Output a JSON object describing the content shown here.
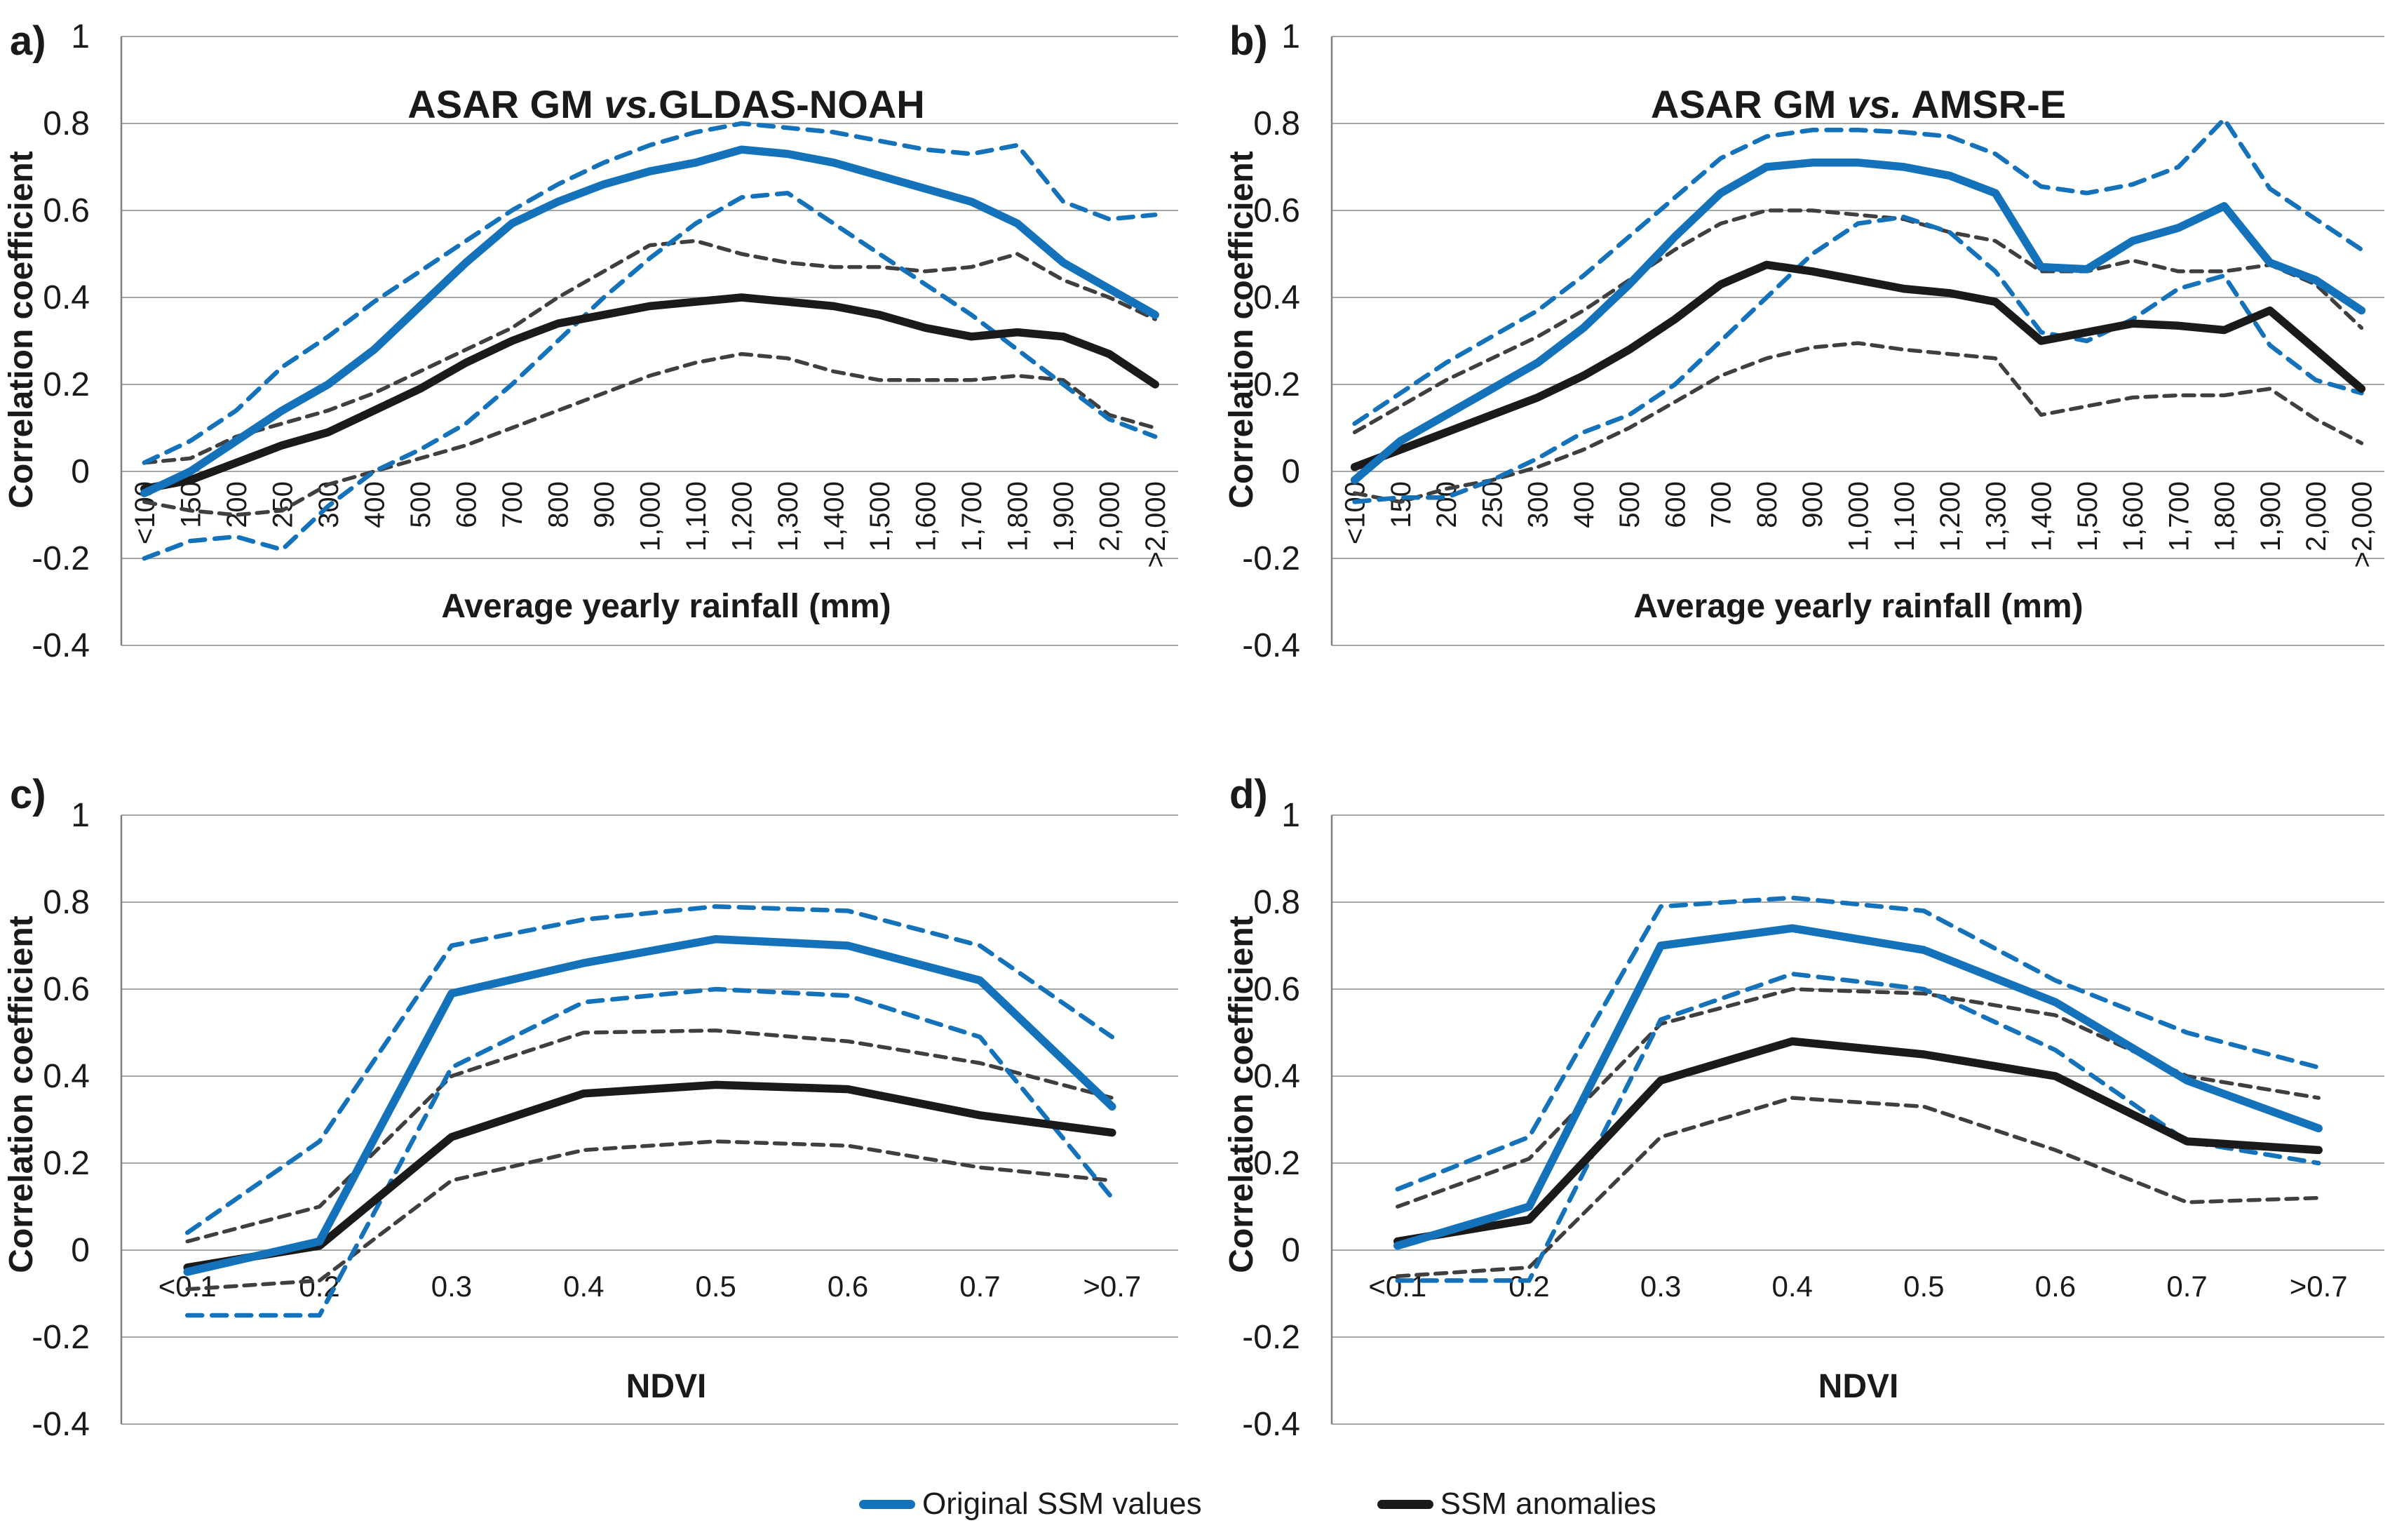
{
  "page": {
    "background": "#ffffff"
  },
  "colors": {
    "blue": "#1472BB",
    "black": "#1a1a1a",
    "black_dashed": "#3f3f3f",
    "gridline": "#a6a6a6",
    "axis_line": "#808080"
  },
  "legend": {
    "items": [
      {
        "label": "Original SSM values",
        "color": "#1472BB"
      },
      {
        "label": "SSM anomalies",
        "color": "#1a1a1a"
      }
    ]
  },
  "y_axis": {
    "label": "Correlation coefficient",
    "tick_labels": [
      "1",
      "0.8",
      "0.6",
      "0.4",
      "0.2",
      "0",
      "-0.2",
      "-0.4"
    ],
    "tick_values": [
      1,
      0.8,
      0.6,
      0.4,
      0.2,
      0,
      -0.2,
      -0.4
    ],
    "min": -0.4,
    "max": 1
  },
  "chart_data": [
    {
      "id": "a",
      "type": "line",
      "panel_letter": "a)",
      "title": "ASAR GM vs.GLDAS-NOAH",
      "title_parts": [
        "ASAR GM ",
        "vs.",
        "GLDAS-NOAH"
      ],
      "xlabel": "Average yearly rainfall (mm)",
      "ylabel": "Correlation coefficient",
      "ylim": [
        -0.4,
        1
      ],
      "x_labels_rotated": true,
      "categories": [
        "<100",
        "150",
        "200",
        "250",
        "300",
        "400",
        "500",
        "600",
        "700",
        "800",
        "900",
        "1,000",
        "1,100",
        "1,200",
        "1,300",
        "1,400",
        "1,500",
        "1,600",
        "1,700",
        "1,800",
        "1,900",
        "2,000",
        ">2,000"
      ],
      "series": [
        {
          "name": "SSM anomalies upper bound",
          "color": "black",
          "style": "dashed",
          "values": [
            0.02,
            0.03,
            0.08,
            0.11,
            0.14,
            0.18,
            0.23,
            0.28,
            0.33,
            0.4,
            0.46,
            0.52,
            0.53,
            0.5,
            0.48,
            0.47,
            0.47,
            0.46,
            0.47,
            0.5,
            0.44,
            0.4,
            0.35
          ]
        },
        {
          "name": "SSM anomalies lower bound",
          "color": "black",
          "style": "dashed",
          "values": [
            -0.07,
            -0.09,
            -0.1,
            -0.09,
            -0.03,
            0.0,
            0.03,
            0.06,
            0.1,
            0.14,
            0.18,
            0.22,
            0.25,
            0.27,
            0.26,
            0.23,
            0.21,
            0.21,
            0.21,
            0.22,
            0.21,
            0.13,
            0.1
          ]
        },
        {
          "name": "Original SSM values upper bound",
          "color": "blue",
          "style": "dashed",
          "values": [
            0.02,
            0.07,
            0.14,
            0.24,
            0.31,
            0.39,
            0.46,
            0.53,
            0.6,
            0.66,
            0.71,
            0.75,
            0.78,
            0.8,
            0.79,
            0.78,
            0.76,
            0.74,
            0.73,
            0.75,
            0.62,
            0.58,
            0.59
          ]
        },
        {
          "name": "Original SSM values lower bound",
          "color": "blue",
          "style": "dashed",
          "values": [
            -0.2,
            -0.16,
            -0.15,
            -0.18,
            -0.08,
            0.0,
            0.05,
            0.11,
            0.2,
            0.3,
            0.4,
            0.49,
            0.57,
            0.63,
            0.64,
            0.57,
            0.5,
            0.43,
            0.36,
            0.28,
            0.2,
            0.12,
            0.08
          ]
        },
        {
          "name": "SSM anomalies",
          "color": "black",
          "style": "solid",
          "values": [
            -0.04,
            -0.02,
            0.02,
            0.06,
            0.09,
            0.14,
            0.19,
            0.25,
            0.3,
            0.34,
            0.36,
            0.38,
            0.39,
            0.4,
            0.39,
            0.38,
            0.36,
            0.33,
            0.31,
            0.32,
            0.31,
            0.27,
            0.2
          ]
        },
        {
          "name": "Original SSM values",
          "color": "blue",
          "style": "solid",
          "values": [
            -0.05,
            0.0,
            0.07,
            0.14,
            0.2,
            0.28,
            0.38,
            0.48,
            0.57,
            0.62,
            0.66,
            0.69,
            0.71,
            0.74,
            0.73,
            0.71,
            0.68,
            0.65,
            0.62,
            0.57,
            0.48,
            0.42,
            0.36
          ]
        }
      ]
    },
    {
      "id": "b",
      "type": "line",
      "panel_letter": "b)",
      "title": "ASAR GM vs. AMSR-E",
      "title_parts": [
        "ASAR GM ",
        "vs.",
        " AMSR-E"
      ],
      "xlabel": "Average yearly rainfall (mm)",
      "ylabel": "Correlation coefficient",
      "ylim": [
        -0.4,
        1
      ],
      "x_labels_rotated": true,
      "categories": [
        "<100",
        "150",
        "200",
        "250",
        "300",
        "400",
        "500",
        "600",
        "700",
        "800",
        "900",
        "1,000",
        "1,100",
        "1,200",
        "1,300",
        "1,400",
        "1,500",
        "1,600",
        "1,700",
        "1,800",
        "1,900",
        "2,000",
        ">2,000"
      ],
      "series": [
        {
          "name": "SSM anomalies upper bound",
          "color": "black",
          "style": "dashed",
          "values": [
            0.09,
            0.15,
            0.21,
            0.26,
            0.31,
            0.37,
            0.44,
            0.51,
            0.57,
            0.6,
            0.6,
            0.59,
            0.58,
            0.55,
            0.53,
            0.46,
            0.46,
            0.485,
            0.46,
            0.46,
            0.475,
            0.43,
            0.33
          ]
        },
        {
          "name": "SSM anomalies lower bound",
          "color": "black",
          "style": "dashed",
          "values": [
            -0.05,
            -0.07,
            -0.04,
            -0.02,
            0.01,
            0.05,
            0.1,
            0.16,
            0.22,
            0.26,
            0.285,
            0.295,
            0.28,
            0.27,
            0.26,
            0.13,
            0.15,
            0.17,
            0.175,
            0.175,
            0.19,
            0.12,
            0.065
          ]
        },
        {
          "name": "Original SSM values upper bound",
          "color": "blue",
          "style": "dashed",
          "values": [
            0.11,
            0.18,
            0.25,
            0.31,
            0.37,
            0.45,
            0.54,
            0.63,
            0.72,
            0.77,
            0.785,
            0.785,
            0.78,
            0.77,
            0.73,
            0.655,
            0.64,
            0.66,
            0.7,
            0.81,
            0.65,
            0.58,
            0.51
          ]
        },
        {
          "name": "Original SSM values lower bound",
          "color": "blue",
          "style": "dashed",
          "values": [
            -0.07,
            -0.06,
            -0.06,
            -0.02,
            0.03,
            0.09,
            0.13,
            0.2,
            0.3,
            0.4,
            0.5,
            0.57,
            0.585,
            0.55,
            0.46,
            0.32,
            0.3,
            0.35,
            0.42,
            0.45,
            0.29,
            0.21,
            0.18
          ]
        },
        {
          "name": "SSM anomalies",
          "color": "black",
          "style": "solid",
          "values": [
            0.01,
            0.05,
            0.09,
            0.13,
            0.17,
            0.22,
            0.28,
            0.35,
            0.43,
            0.475,
            0.46,
            0.44,
            0.42,
            0.41,
            0.39,
            0.3,
            0.32,
            0.34,
            0.335,
            0.325,
            0.37,
            0.28,
            0.19
          ]
        },
        {
          "name": "Original SSM values",
          "color": "blue",
          "style": "solid",
          "values": [
            -0.02,
            0.07,
            0.13,
            0.19,
            0.25,
            0.33,
            0.43,
            0.54,
            0.64,
            0.7,
            0.71,
            0.71,
            0.7,
            0.68,
            0.64,
            0.47,
            0.465,
            0.53,
            0.56,
            0.61,
            0.48,
            0.44,
            0.37
          ]
        }
      ]
    },
    {
      "id": "c",
      "type": "line",
      "panel_letter": "c)",
      "title": "",
      "title_parts": [],
      "xlabel": "NDVI",
      "ylabel": "Correlation coefficient",
      "ylim": [
        -0.4,
        1
      ],
      "x_labels_rotated": false,
      "categories": [
        "<0.1",
        "0.2",
        "0.3",
        "0.4",
        "0.5",
        "0.6",
        "0.7",
        ">0.7"
      ],
      "series": [
        {
          "name": "SSM anomalies upper bound",
          "color": "black",
          "style": "dashed",
          "values": [
            0.02,
            0.1,
            0.4,
            0.5,
            0.505,
            0.48,
            0.43,
            0.35
          ]
        },
        {
          "name": "SSM anomalies lower bound",
          "color": "black",
          "style": "dashed",
          "values": [
            -0.09,
            -0.07,
            0.16,
            0.23,
            0.25,
            0.24,
            0.19,
            0.16
          ]
        },
        {
          "name": "Original SSM values upper bound",
          "color": "blue",
          "style": "dashed",
          "values": [
            0.04,
            0.25,
            0.7,
            0.76,
            0.79,
            0.78,
            0.7,
            0.49
          ]
        },
        {
          "name": "Original SSM values lower bound",
          "color": "blue",
          "style": "dashed",
          "values": [
            -0.15,
            -0.15,
            0.42,
            0.57,
            0.6,
            0.585,
            0.49,
            0.12
          ]
        },
        {
          "name": "SSM anomalies",
          "color": "black",
          "style": "solid",
          "values": [
            -0.04,
            0.01,
            0.26,
            0.36,
            0.38,
            0.37,
            0.31,
            0.27
          ]
        },
        {
          "name": "Original SSM values",
          "color": "blue",
          "style": "solid",
          "values": [
            -0.05,
            0.02,
            0.59,
            0.66,
            0.715,
            0.7,
            0.62,
            0.33
          ]
        }
      ]
    },
    {
      "id": "d",
      "type": "line",
      "panel_letter": "d)",
      "title": "",
      "title_parts": [],
      "xlabel": "NDVI",
      "ylabel": "Correlation coefficient",
      "ylim": [
        -0.4,
        1
      ],
      "x_labels_rotated": false,
      "categories": [
        "<0.1",
        "0.2",
        "0.3",
        "0.4",
        "0.5",
        "0.6",
        "0.7",
        ">0.7"
      ],
      "series": [
        {
          "name": "SSM anomalies upper bound",
          "color": "black",
          "style": "dashed",
          "values": [
            0.1,
            0.21,
            0.52,
            0.6,
            0.59,
            0.54,
            0.4,
            0.35
          ]
        },
        {
          "name": "SSM anomalies lower bound",
          "color": "black",
          "style": "dashed",
          "values": [
            -0.06,
            -0.04,
            0.26,
            0.35,
            0.33,
            0.23,
            0.11,
            0.12
          ]
        },
        {
          "name": "Original SSM values upper bound",
          "color": "blue",
          "style": "dashed",
          "values": [
            0.14,
            0.26,
            0.79,
            0.81,
            0.78,
            0.62,
            0.5,
            0.42
          ]
        },
        {
          "name": "Original SSM values lower bound",
          "color": "blue",
          "style": "dashed",
          "values": [
            -0.07,
            -0.07,
            0.53,
            0.635,
            0.6,
            0.46,
            0.25,
            0.2
          ]
        },
        {
          "name": "SSM anomalies",
          "color": "black",
          "style": "solid",
          "values": [
            0.02,
            0.07,
            0.39,
            0.48,
            0.45,
            0.4,
            0.25,
            0.23
          ]
        },
        {
          "name": "Original SSM values",
          "color": "blue",
          "style": "solid",
          "values": [
            0.01,
            0.1,
            0.7,
            0.74,
            0.69,
            0.57,
            0.39,
            0.28
          ]
        }
      ]
    }
  ]
}
